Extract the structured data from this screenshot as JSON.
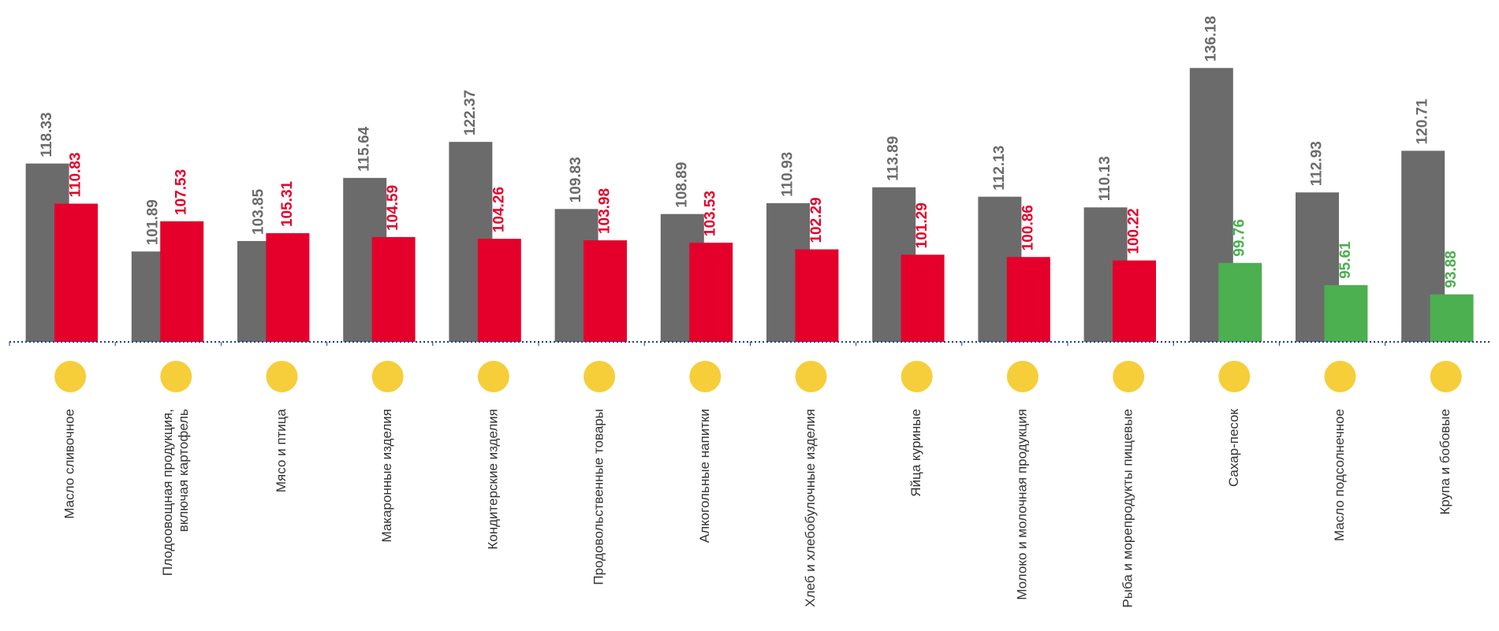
{
  "chart_data": {
    "type": "bar",
    "categories": [
      "Масло сливочное",
      [
        "Плодоовощная продукция,",
        "включая картофель"
      ],
      "Мясо и птица",
      "Макаронные изделия",
      "Кондитерские изделия",
      "Продовольственные товары",
      "Алкогольные напитки",
      "Хлеб и хлебобулочные изделия",
      "Яйца куриные",
      "Молоко и молочная продукция",
      "Рыба и морепродукты пищевые",
      "Сахар-песок",
      "Масло подсолнечное",
      "Крупа и бобовые"
    ],
    "series": [
      {
        "color": "#6b6b6b",
        "label_color": "#6b6b6b",
        "values": [
          118.33,
          101.89,
          103.85,
          115.64,
          122.37,
          109.83,
          108.89,
          110.93,
          113.89,
          112.13,
          110.13,
          136.18,
          112.93,
          120.71
        ]
      },
      {
        "colors": [
          "#e4002b",
          "#e4002b",
          "#e4002b",
          "#e4002b",
          "#e4002b",
          "#e4002b",
          "#e4002b",
          "#e4002b",
          "#e4002b",
          "#e4002b",
          "#e4002b",
          "#4caf50",
          "#4caf50",
          "#4caf50"
        ],
        "values": [
          110.83,
          107.53,
          105.31,
          104.59,
          104.26,
          103.98,
          103.53,
          102.29,
          101.29,
          100.86,
          100.22,
          99.76,
          95.61,
          93.88
        ]
      }
    ],
    "ylim": [
      85,
      148
    ],
    "axis_color": "#1f3a93"
  }
}
